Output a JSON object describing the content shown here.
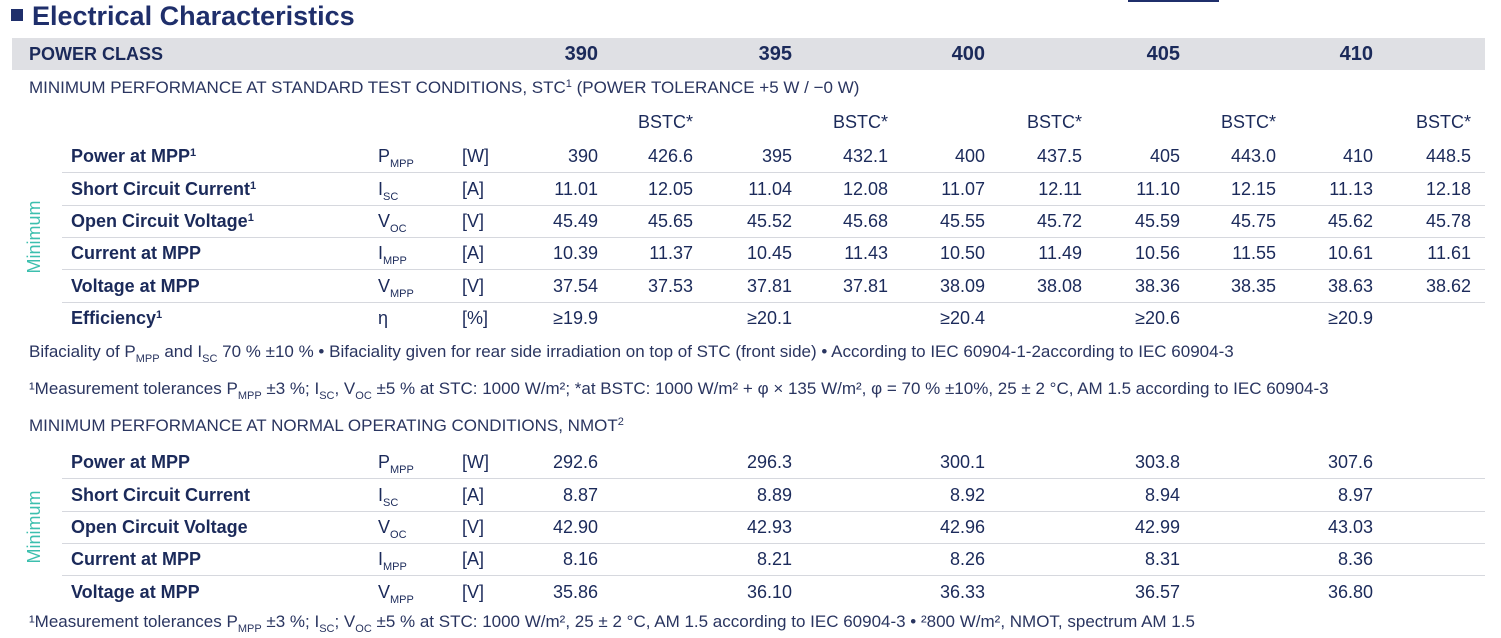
{
  "header": {
    "title": "Electrical Characteristics"
  },
  "power_class": {
    "label": "POWER CLASS",
    "values": [
      "390",
      "395",
      "400",
      "405",
      "410"
    ]
  },
  "stc": {
    "heading": [
      {
        "t": "MINIMUM PERFORMANCE AT STANDARD TEST CONDITIONS, STC"
      },
      {
        "sup": "1"
      },
      {
        "t": " (POWER TOLERANCE +5 W / −0 W)"
      }
    ],
    "side_label": "Minimum",
    "bstc_labels": [
      "BSTC*",
      "BSTC*",
      "BSTC*",
      "BSTC*",
      "BSTC*"
    ],
    "rows": [
      {
        "name": "Power at MPP",
        "sup": "1",
        "symbol": {
          "base": "P",
          "sub": "MPP"
        },
        "unit": "[W]",
        "values": [
          "390",
          "426.6",
          "395",
          "432.1",
          "400",
          "437.5",
          "405",
          "443.0",
          "410",
          "448.5"
        ]
      },
      {
        "name": "Short Circuit Current",
        "sup": "1",
        "symbol": {
          "base": "I",
          "sub": "SC"
        },
        "unit": "[A]",
        "values": [
          "11.01",
          "12.05",
          "11.04",
          "12.08",
          "11.07",
          "12.11",
          "11.10",
          "12.15",
          "11.13",
          "12.18"
        ]
      },
      {
        "name": "Open Circuit Voltage",
        "sup": "1",
        "symbol": {
          "base": "V",
          "sub": "OC"
        },
        "unit": "[V]",
        "values": [
          "45.49",
          "45.65",
          "45.52",
          "45.68",
          "45.55",
          "45.72",
          "45.59",
          "45.75",
          "45.62",
          "45.78"
        ]
      },
      {
        "name": "Current at MPP",
        "symbol": {
          "base": "I",
          "sub": "MPP"
        },
        "unit": "[A]",
        "values": [
          "10.39",
          "11.37",
          "10.45",
          "11.43",
          "10.50",
          "11.49",
          "10.56",
          "11.55",
          "10.61",
          "11.61"
        ]
      },
      {
        "name": "Voltage at MPP",
        "symbol": {
          "base": "V",
          "sub": "MPP"
        },
        "unit": "[V]",
        "values": [
          "37.54",
          "37.53",
          "37.81",
          "37.81",
          "38.09",
          "38.08",
          "38.36",
          "38.35",
          "38.63",
          "38.62"
        ]
      },
      {
        "name": "Efficiency",
        "sup": "1",
        "symbol": {
          "base": "η"
        },
        "unit": "[%]",
        "values": [
          "≥19.9",
          "≥20.1",
          "≥20.4",
          "≥20.6",
          "≥20.9"
        ]
      }
    ],
    "notes": [
      [
        {
          "t": "Bifaciality of P"
        },
        {
          "sub": "MPP"
        },
        {
          "t": " and I"
        },
        {
          "sub": "SC"
        },
        {
          "t": " 70 % ±10 % • Bifaciality given for rear side irradiation on top of STC (front side) • According to IEC 60904-1-2according to IEC 60904-3"
        }
      ],
      [
        {
          "t": "¹Measurement tolerances P"
        },
        {
          "sub": "MPP"
        },
        {
          "t": " ±3 %; I"
        },
        {
          "sub": "SC"
        },
        {
          "t": ", V"
        },
        {
          "sub": "OC"
        },
        {
          "t": " ±5 % at STC: 1000 W/m²; *at BSTC: 1000 W/m² + φ × 135 W/m², φ = 70 % ±10%, 25 ± 2 °C, AM 1.5 according to IEC 60904-3"
        }
      ]
    ]
  },
  "nmot": {
    "heading": [
      {
        "t": "MINIMUM PERFORMANCE AT NORMAL OPERATING CONDITIONS, NMOT"
      },
      {
        "sup": "2"
      }
    ],
    "side_label": "Minimum",
    "rows": [
      {
        "name": "Power at MPP",
        "symbol": {
          "base": "P",
          "sub": "MPP"
        },
        "unit": "[W]",
        "values": [
          "292.6",
          "296.3",
          "300.1",
          "303.8",
          "307.6"
        ]
      },
      {
        "name": "Short Circuit Current",
        "symbol": {
          "base": "I",
          "sub": "SC"
        },
        "unit": "[A]",
        "values": [
          "8.87",
          "8.89",
          "8.92",
          "8.94",
          "8.97"
        ]
      },
      {
        "name": "Open Circuit Voltage",
        "symbol": {
          "base": "V",
          "sub": "OC"
        },
        "unit": "[V]",
        "values": [
          "42.90",
          "42.93",
          "42.96",
          "42.99",
          "43.03"
        ]
      },
      {
        "name": "Current at MPP",
        "symbol": {
          "base": "I",
          "sub": "MPP"
        },
        "unit": "[A]",
        "values": [
          "8.16",
          "8.21",
          "8.26",
          "8.31",
          "8.36"
        ]
      },
      {
        "name": "Voltage at MPP",
        "symbol": {
          "base": "V",
          "sub": "MPP"
        },
        "unit": "[V]",
        "values": [
          "35.86",
          "36.10",
          "36.33",
          "36.57",
          "36.80"
        ]
      }
    ],
    "notes": [
      [
        {
          "t": "¹Measurement tolerances P"
        },
        {
          "sub": "MPP"
        },
        {
          "t": " ±3 %; I"
        },
        {
          "sub": "SC"
        },
        {
          "t": "; V"
        },
        {
          "sub": "OC"
        },
        {
          "t": " ±5 % at STC: 1000 W/m², 25 ± 2 °C, AM 1.5 according to IEC 60904-3 • ²800 W/m², NMOT, spectrum AM 1.5"
        }
      ]
    ]
  }
}
